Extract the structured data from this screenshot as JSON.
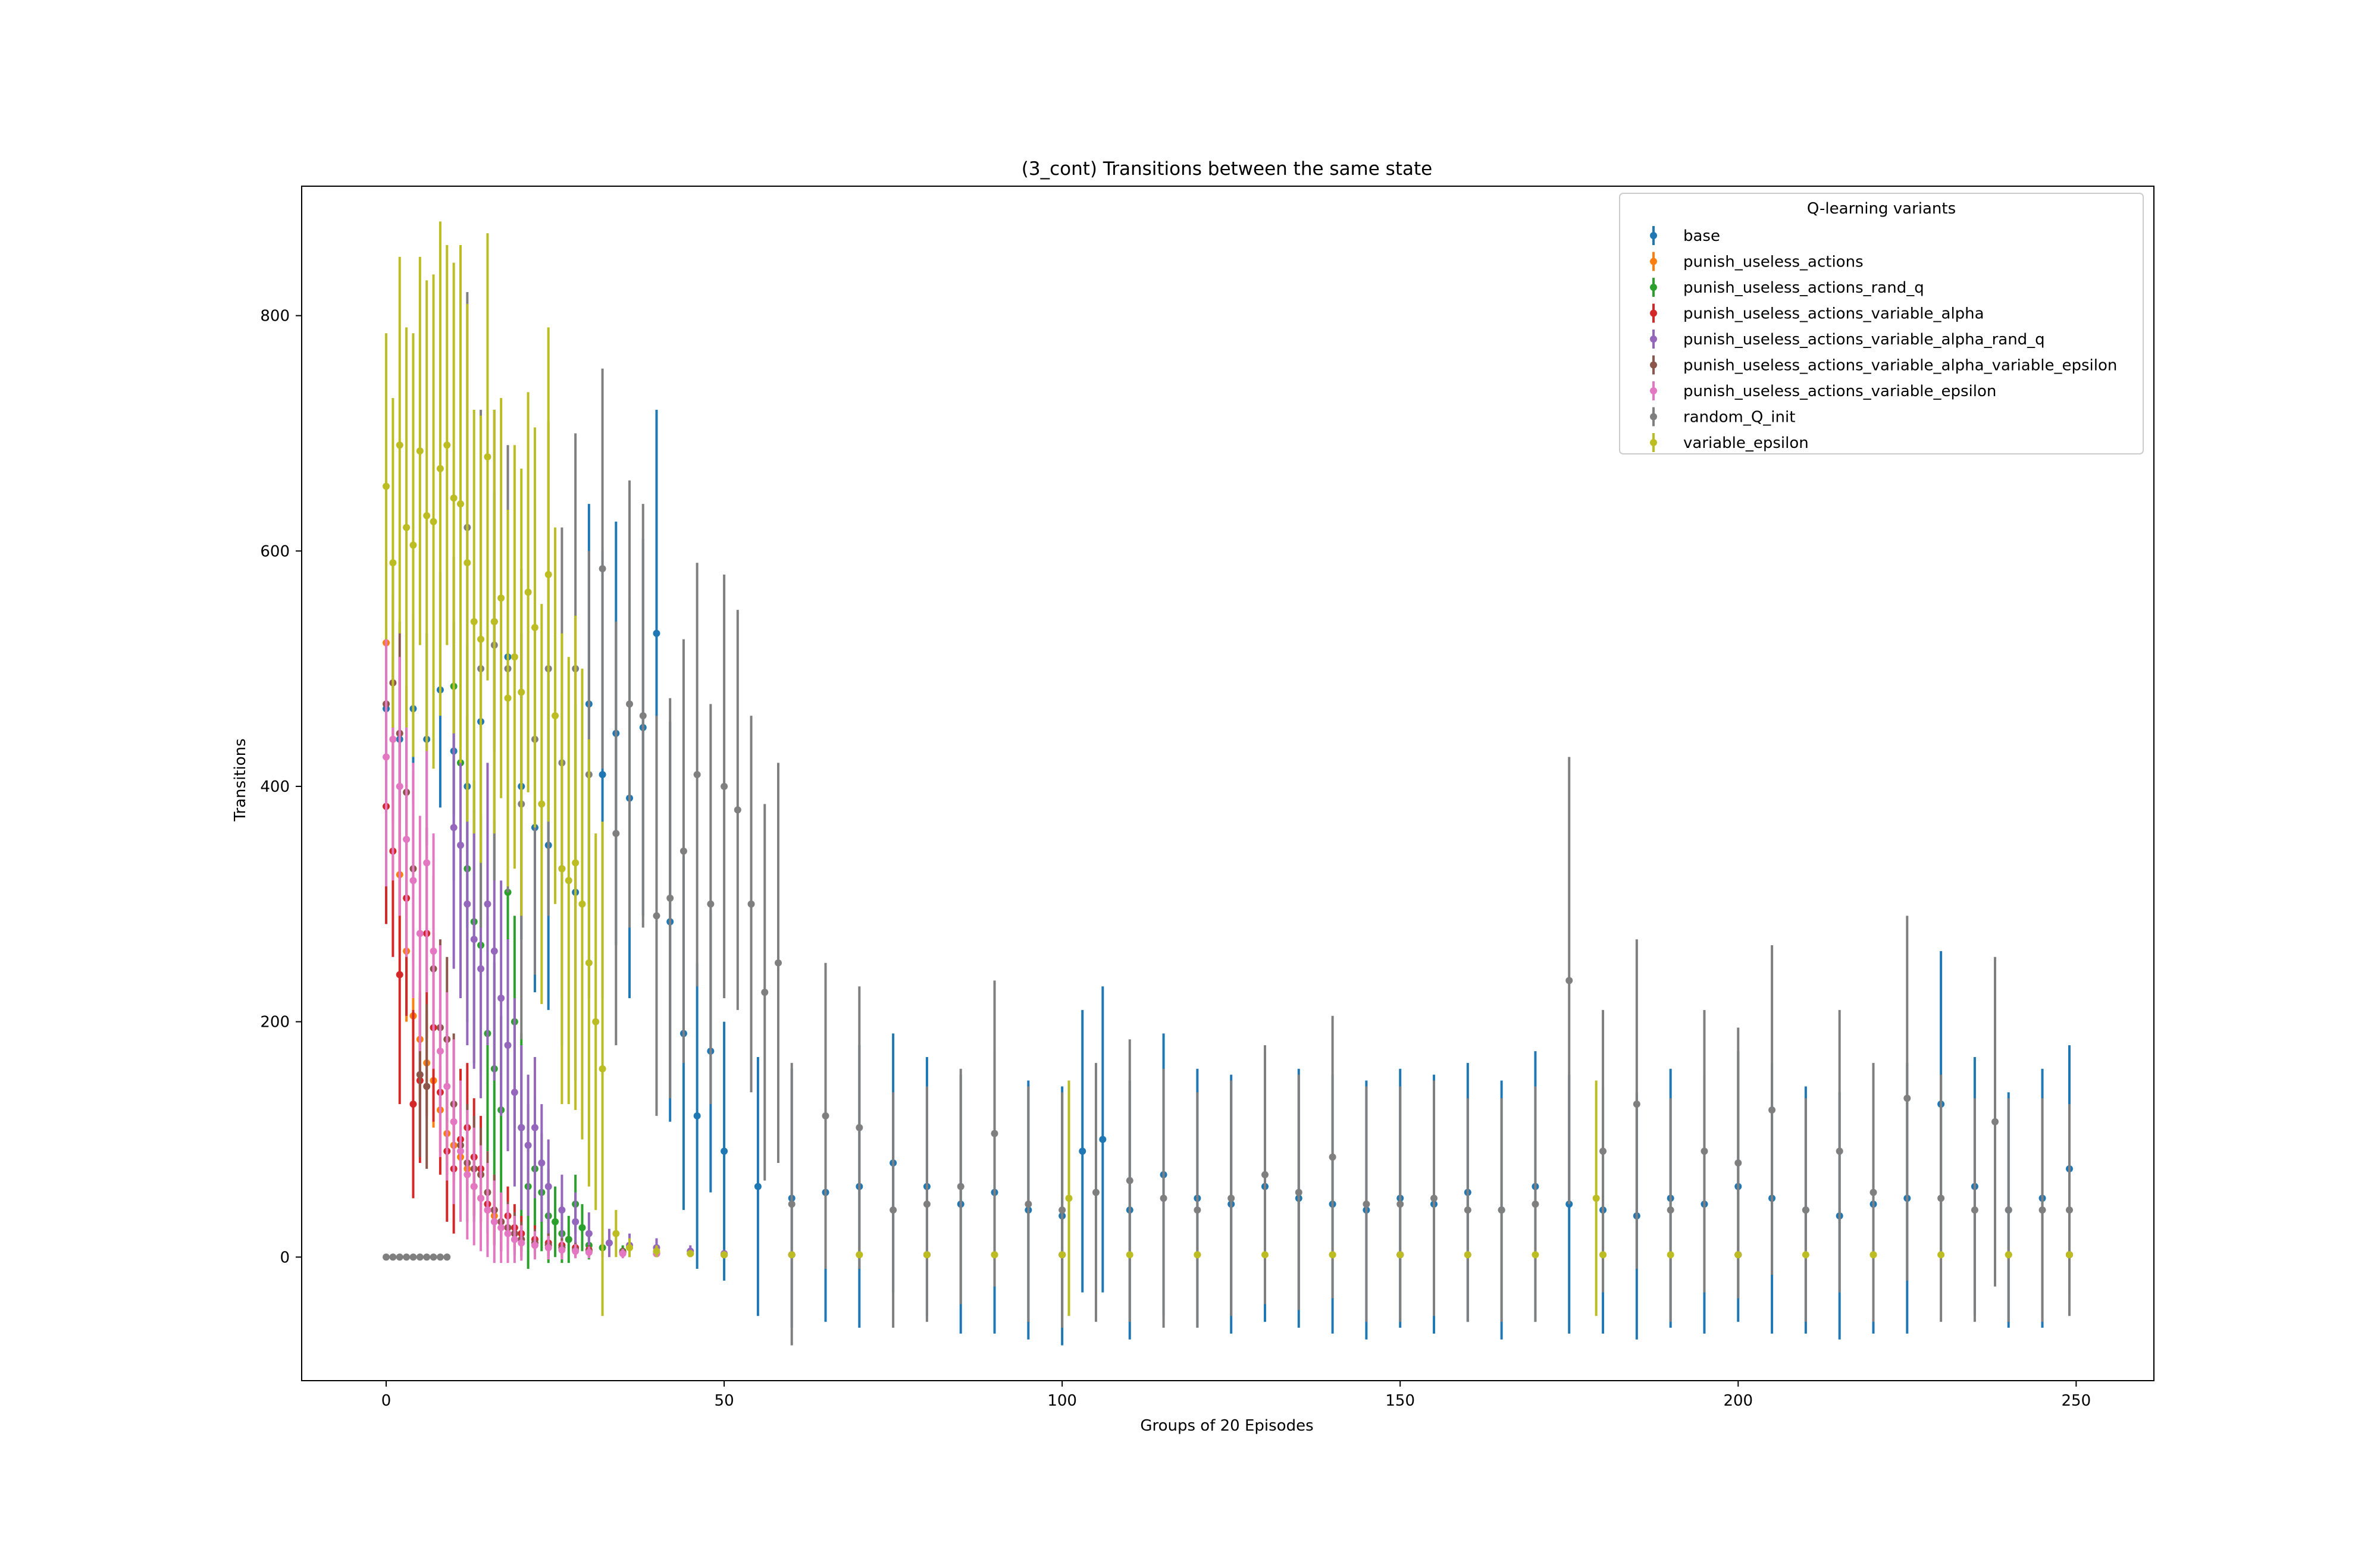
{
  "chart_data": {
    "type": "scatter",
    "title": "(3_cont) Transitions between the same state",
    "xlabel": "Groups of 20 Episodes",
    "ylabel": "Transitions",
    "xlim": [
      -12.5,
      261.5
    ],
    "ylim": [
      -105,
      910
    ],
    "xticks": [
      0,
      50,
      100,
      150,
      200,
      250
    ],
    "yticks": [
      0,
      200,
      400,
      600,
      800
    ],
    "grid": false,
    "legend": {
      "title": "Q-learning variants",
      "placement": "top-right"
    },
    "series": [
      {
        "name": "base",
        "color": "#1f77b4",
        "x": [
          0,
          2,
          4,
          6,
          8,
          10,
          12,
          14,
          16,
          18,
          20,
          22,
          24,
          26,
          28,
          30,
          32,
          34,
          36,
          38,
          40,
          42,
          44,
          46,
          48,
          50,
          55,
          60,
          65,
          70,
          75,
          80,
          85,
          90,
          95,
          100,
          103,
          106,
          110,
          115,
          120,
          125,
          130,
          135,
          140,
          145,
          150,
          155,
          160,
          165,
          170,
          175,
          180,
          185,
          190,
          195,
          200,
          205,
          210,
          215,
          220,
          225,
          230,
          235,
          240,
          245,
          249
        ],
        "y": [
          466,
          440,
          466,
          440,
          482,
          430,
          400,
          455,
          540,
          510,
          400,
          365,
          350,
          330,
          310,
          470,
          410,
          445,
          390,
          450,
          530,
          285,
          190,
          120,
          175,
          90,
          60,
          50,
          55,
          60,
          80,
          60,
          45,
          55,
          40,
          35,
          90,
          100,
          40,
          70,
          50,
          45,
          60,
          50,
          45,
          40,
          50,
          45,
          55,
          40,
          60,
          45,
          40,
          35,
          50,
          45,
          60,
          50,
          40,
          35,
          45,
          50,
          130,
          60,
          40,
          50,
          75
        ],
        "err": [
          60,
          70,
          80,
          90,
          100,
          110,
          120,
          120,
          110,
          120,
          130,
          140,
          140,
          150,
          160,
          170,
          190,
          180,
          170,
          160,
          190,
          170,
          150,
          130,
          120,
          110,
          110,
          110,
          110,
          120,
          110,
          110,
          110,
          120,
          110,
          110,
          120,
          130,
          110,
          120,
          110,
          110,
          115,
          110,
          110,
          110,
          110,
          110,
          110,
          110,
          115,
          110,
          105,
          105,
          110,
          110,
          115,
          115,
          105,
          105,
          110,
          115,
          130,
          110,
          100,
          110,
          105
        ]
      },
      {
        "name": "punish_useless_actions",
        "color": "#ff7f0e",
        "x": [
          0,
          1,
          2,
          3,
          4,
          5,
          6,
          7,
          8,
          9,
          10,
          11,
          12,
          13,
          14,
          15,
          16,
          17,
          18,
          19,
          20,
          22,
          24,
          26,
          28,
          30,
          35,
          40,
          45,
          50,
          60,
          70,
          80,
          90,
          100,
          120,
          140,
          160,
          180,
          200,
          220,
          240,
          249
        ],
        "y": [
          522,
          440,
          325,
          260,
          205,
          185,
          165,
          150,
          125,
          105,
          95,
          85,
          75,
          60,
          50,
          40,
          35,
          30,
          25,
          20,
          15,
          12,
          10,
          8,
          6,
          5,
          4,
          3,
          3,
          2,
          2,
          2,
          2,
          2,
          2,
          2,
          2,
          2,
          2,
          2,
          2,
          2,
          2
        ],
        "err": [
          80,
          70,
          65,
          60,
          55,
          50,
          45,
          40,
          38,
          35,
          32,
          30,
          28,
          25,
          22,
          20,
          18,
          16,
          14,
          12,
          10,
          8,
          7,
          6,
          5,
          4,
          4,
          3,
          3,
          2,
          2,
          2,
          2,
          2,
          2,
          2,
          2,
          2,
          2,
          2,
          2,
          2,
          2
        ]
      },
      {
        "name": "punish_useless_actions_rand_q",
        "color": "#2ca02c",
        "x": [
          10,
          11,
          12,
          13,
          14,
          15,
          16,
          17,
          18,
          19,
          20,
          21,
          22,
          23,
          24,
          25,
          26,
          27,
          28,
          29,
          30,
          32,
          35,
          40,
          50,
          60,
          80,
          100,
          150,
          200,
          249
        ],
        "y": [
          485,
          420,
          330,
          285,
          265,
          190,
          160,
          125,
          310,
          200,
          110,
          60,
          75,
          55,
          35,
          30,
          20,
          15,
          45,
          25,
          10,
          8,
          5,
          3,
          2,
          2,
          2,
          2,
          2,
          2,
          2
        ],
        "err": [
          110,
          120,
          130,
          120,
          110,
          100,
          90,
          80,
          100,
          90,
          80,
          70,
          60,
          50,
          40,
          30,
          25,
          20,
          25,
          20,
          12,
          8,
          5,
          3,
          2,
          2,
          2,
          2,
          2,
          2,
          2
        ]
      },
      {
        "name": "punish_useless_actions_variable_alpha",
        "color": "#d62728",
        "x": [
          0,
          1,
          2,
          3,
          4,
          5,
          6,
          7,
          8,
          9,
          10,
          11,
          12,
          13,
          14,
          15,
          16,
          17,
          18,
          19,
          20,
          22,
          24,
          26,
          28,
          30,
          35,
          40,
          50,
          60,
          80,
          100,
          150,
          200,
          249
        ],
        "y": [
          383,
          345,
          240,
          305,
          130,
          150,
          275,
          195,
          140,
          90,
          75,
          100,
          110,
          85,
          75,
          45,
          40,
          30,
          35,
          25,
          20,
          15,
          12,
          10,
          8,
          6,
          4,
          3,
          2,
          2,
          2,
          2,
          2,
          2,
          2
        ],
        "err": [
          100,
          90,
          110,
          100,
          80,
          70,
          90,
          80,
          70,
          60,
          55,
          60,
          55,
          50,
          45,
          35,
          30,
          25,
          25,
          20,
          15,
          12,
          10,
          8,
          6,
          5,
          4,
          3,
          2,
          2,
          2,
          2,
          2,
          2,
          2
        ]
      },
      {
        "name": "punish_useless_actions_variable_alpha_rand_q",
        "color": "#9467bd",
        "x": [
          10,
          11,
          12,
          13,
          14,
          15,
          16,
          17,
          18,
          19,
          20,
          21,
          22,
          23,
          24,
          26,
          28,
          30,
          33,
          36,
          40,
          45,
          50,
          60,
          80,
          100,
          150,
          200,
          249
        ],
        "y": [
          365,
          350,
          300,
          270,
          245,
          300,
          260,
          220,
          180,
          140,
          110,
          95,
          110,
          80,
          60,
          40,
          30,
          20,
          12,
          10,
          8,
          5,
          3,
          2,
          2,
          2,
          2,
          2,
          2
        ],
        "err": [
          120,
          130,
          120,
          110,
          110,
          120,
          110,
          100,
          90,
          80,
          70,
          60,
          60,
          50,
          40,
          30,
          25,
          18,
          12,
          10,
          8,
          5,
          3,
          2,
          2,
          2,
          2,
          2,
          2
        ]
      },
      {
        "name": "punish_useless_actions_variable_alpha_variable_epsilon",
        "color": "#8c564b",
        "x": [
          0,
          1,
          2,
          3,
          4,
          5,
          6,
          7,
          8,
          9,
          10,
          11,
          12,
          13,
          14,
          15,
          16,
          17,
          18,
          19,
          20,
          22,
          24,
          26,
          28,
          30,
          35,
          40,
          50,
          60,
          80,
          100,
          150,
          200,
          249
        ],
        "y": [
          470,
          488,
          445,
          395,
          330,
          155,
          145,
          245,
          195,
          185,
          130,
          95,
          80,
          75,
          70,
          55,
          40,
          30,
          25,
          20,
          15,
          12,
          10,
          8,
          6,
          5,
          4,
          3,
          2,
          2,
          2,
          2,
          2,
          2,
          2
        ],
        "err": [
          90,
          100,
          95,
          90,
          80,
          70,
          70,
          80,
          75,
          70,
          60,
          55,
          50,
          45,
          40,
          35,
          30,
          25,
          22,
          18,
          15,
          12,
          10,
          8,
          6,
          5,
          4,
          3,
          2,
          2,
          2,
          2,
          2,
          2,
          2
        ]
      },
      {
        "name": "punish_useless_actions_variable_epsilon",
        "color": "#e377c2",
        "x": [
          0,
          1,
          2,
          3,
          4,
          5,
          6,
          7,
          8,
          9,
          10,
          11,
          12,
          13,
          14,
          15,
          16,
          17,
          18,
          19,
          20,
          22,
          24,
          26,
          28,
          30,
          35,
          40,
          50,
          60,
          80,
          100,
          150,
          200,
          249
        ],
        "y": [
          425,
          440,
          400,
          355,
          320,
          275,
          335,
          260,
          175,
          145,
          115,
          90,
          70,
          60,
          50,
          40,
          30,
          25,
          20,
          15,
          12,
          10,
          8,
          6,
          5,
          4,
          3,
          3,
          2,
          2,
          2,
          2,
          2,
          2,
          2
        ],
        "err": [
          110,
          120,
          110,
          100,
          100,
          100,
          110,
          100,
          90,
          80,
          70,
          60,
          55,
          50,
          45,
          40,
          35,
          30,
          25,
          20,
          15,
          12,
          10,
          8,
          6,
          5,
          4,
          3,
          2,
          2,
          2,
          2,
          2,
          2,
          2
        ]
      },
      {
        "name": "random_Q_init",
        "color": "#7f7f7f",
        "x": [
          0,
          1,
          2,
          3,
          4,
          5,
          6,
          7,
          8,
          9,
          12,
          14,
          16,
          18,
          20,
          22,
          24,
          26,
          28,
          30,
          32,
          34,
          36,
          38,
          40,
          42,
          44,
          46,
          48,
          50,
          52,
          54,
          56,
          58,
          60,
          65,
          70,
          75,
          80,
          85,
          90,
          95,
          100,
          105,
          110,
          115,
          120,
          125,
          130,
          135,
          140,
          145,
          150,
          155,
          160,
          165,
          170,
          175,
          180,
          185,
          190,
          195,
          200,
          205,
          210,
          215,
          220,
          225,
          230,
          235,
          238,
          240,
          245,
          249
        ],
        "y": [
          0,
          0,
          0,
          0,
          0,
          0,
          0,
          0,
          0,
          0,
          620,
          500,
          520,
          500,
          385,
          440,
          500,
          420,
          500,
          410,
          585,
          360,
          470,
          460,
          290,
          305,
          345,
          410,
          300,
          400,
          380,
          300,
          225,
          250,
          45,
          120,
          110,
          40,
          45,
          60,
          105,
          45,
          40,
          55,
          65,
          50,
          40,
          50,
          70,
          55,
          85,
          45,
          45,
          50,
          40,
          40,
          45,
          235,
          90,
          130,
          40,
          90,
          80,
          125,
          40,
          90,
          55,
          135,
          50,
          40,
          115,
          40,
          40,
          40
        ],
        "err": [
          0,
          0,
          0,
          0,
          0,
          0,
          0,
          0,
          0,
          0,
          200,
          220,
          200,
          190,
          200,
          200,
          210,
          200,
          200,
          190,
          170,
          180,
          190,
          180,
          170,
          170,
          180,
          180,
          170,
          180,
          170,
          160,
          160,
          170,
          120,
          130,
          120,
          100,
          100,
          100,
          130,
          100,
          100,
          110,
          120,
          110,
          100,
          100,
          110,
          100,
          120,
          100,
          100,
          100,
          95,
          95,
          100,
          190,
          120,
          140,
          95,
          120,
          115,
          140,
          95,
          120,
          110,
          155,
          105,
          95,
          140,
          95,
          95,
          90
        ]
      },
      {
        "name": "variable_epsilon",
        "color": "#bcbd22",
        "x": [
          0,
          1,
          2,
          3,
          4,
          5,
          6,
          7,
          8,
          9,
          10,
          11,
          12,
          13,
          14,
          15,
          16,
          17,
          18,
          19,
          20,
          21,
          22,
          23,
          24,
          25,
          26,
          27,
          28,
          29,
          30,
          31,
          32,
          34,
          36,
          40,
          45,
          50,
          60,
          70,
          80,
          90,
          100,
          101,
          110,
          120,
          130,
          140,
          150,
          160,
          170,
          179,
          180,
          190,
          200,
          210,
          220,
          230,
          240,
          249
        ],
        "y": [
          655,
          590,
          690,
          620,
          605,
          685,
          630,
          625,
          670,
          690,
          645,
          640,
          590,
          540,
          525,
          680,
          540,
          560,
          475,
          510,
          480,
          565,
          535,
          385,
          580,
          460,
          330,
          320,
          335,
          300,
          250,
          200,
          160,
          20,
          8,
          5,
          3,
          2,
          2,
          2,
          2,
          2,
          2,
          50,
          2,
          2,
          2,
          2,
          2,
          2,
          2,
          50,
          2,
          2,
          2,
          2,
          2,
          2,
          2,
          2
        ],
        "err": [
          130,
          140,
          160,
          170,
          180,
          165,
          200,
          210,
          210,
          170,
          200,
          220,
          220,
          180,
          190,
          190,
          180,
          170,
          160,
          180,
          190,
          170,
          170,
          170,
          210,
          160,
          200,
          190,
          210,
          200,
          190,
          160,
          210,
          20,
          8,
          5,
          3,
          2,
          2,
          2,
          2,
          2,
          2,
          100,
          2,
          2,
          2,
          2,
          2,
          2,
          2,
          100,
          2,
          2,
          2,
          2,
          2,
          2,
          2,
          2
        ]
      }
    ]
  }
}
